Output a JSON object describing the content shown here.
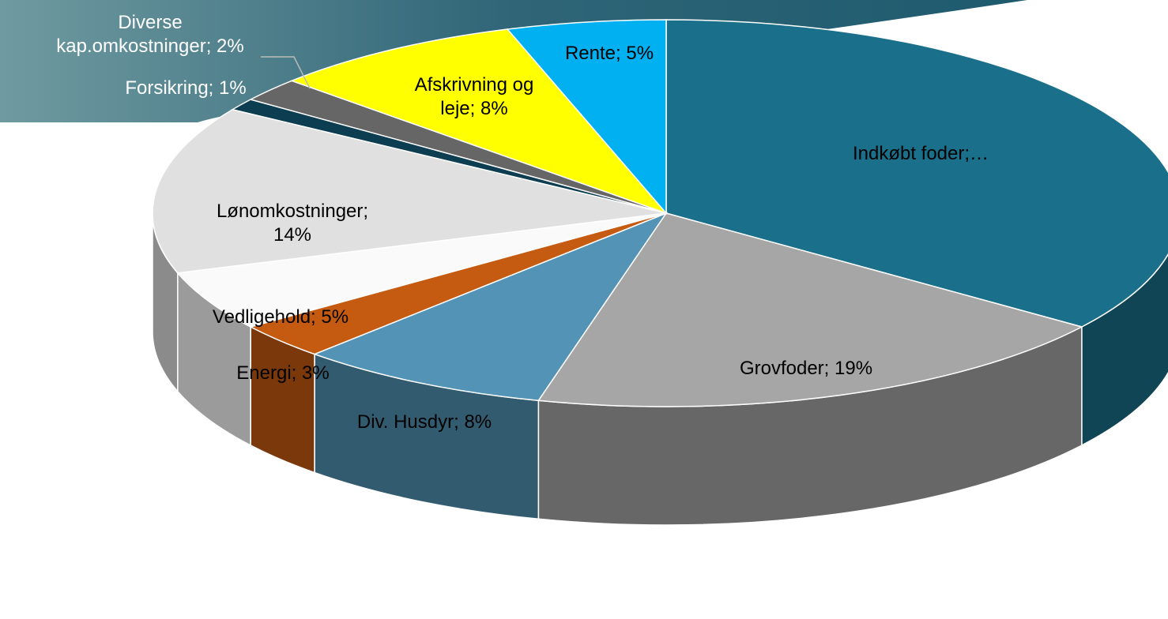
{
  "chart_data": {
    "type": "pie",
    "values": [
      35,
      19,
      8,
      3,
      5,
      14,
      1,
      2,
      8,
      5
    ],
    "value_labels": [
      "Indkøbt foder;…",
      "Grovfoder; 19%",
      "Div. Husdyr; 8%",
      "Energi; 3%",
      "Vedligehold; 5%",
      "Lønomkostninger;\n14%",
      "Forsikring; 1%",
      "Diverse\nkap.omkostninger; 2%",
      "Afskrivning og\nleje; 8%",
      "Rente; 5%"
    ],
    "colors": [
      "#1a6f8a",
      "#a6a6a6",
      "#5393b5",
      "#c55a11",
      "#fafafa",
      "#e0e0e0",
      "#0d3d50",
      "#666666",
      "#ffff00",
      "#00b0f0"
    ]
  }
}
